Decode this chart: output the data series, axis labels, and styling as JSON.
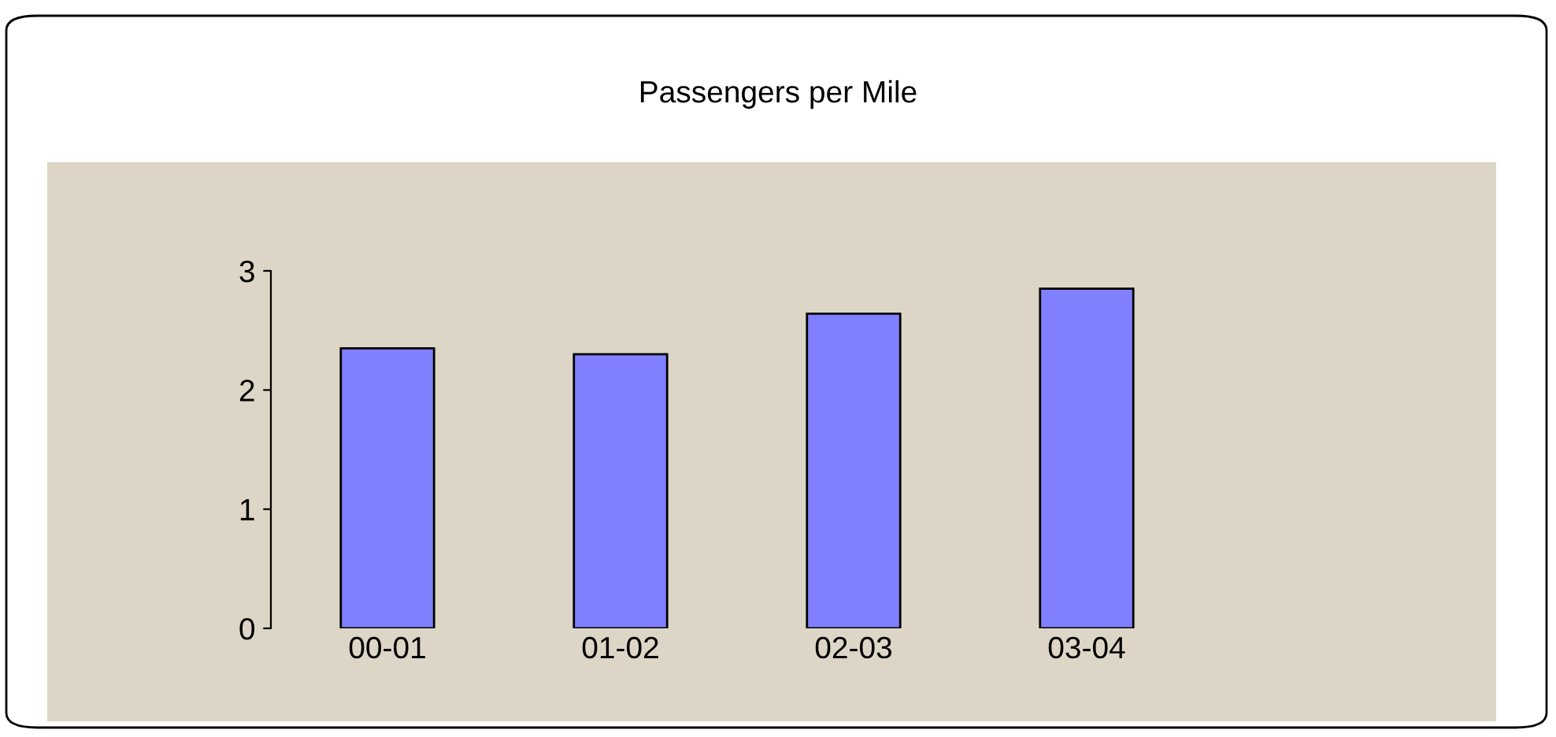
{
  "chart_data": {
    "type": "bar",
    "title": "Passengers per Mile",
    "categories": [
      "00-01",
      "01-02",
      "02-03",
      "03-04"
    ],
    "values": [
      2.35,
      2.3,
      2.64,
      2.85
    ],
    "color": "#8080ff",
    "ylim": [
      0,
      3
    ],
    "yticks": [
      0,
      1,
      2,
      3
    ],
    "grid": false,
    "legend": false
  }
}
